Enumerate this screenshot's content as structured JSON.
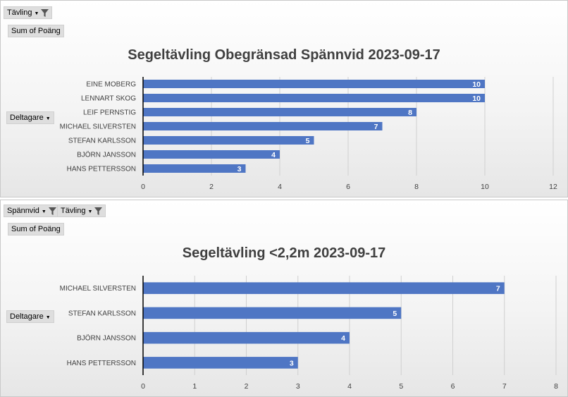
{
  "panel1": {
    "filters": [
      {
        "label": "Tävling"
      }
    ],
    "value_field": "Sum of Poäng",
    "row_field": "Deltagare"
  },
  "panel2": {
    "filters": [
      {
        "label": "Spännvid"
      },
      {
        "label": "Tävling"
      }
    ],
    "value_field": "Sum of Poäng",
    "row_field": "Deltagare"
  },
  "colors": {
    "bar": "#4f76c4",
    "grid": "#d0d0d0",
    "axis": "#000000"
  },
  "chart_data": [
    {
      "type": "bar",
      "orientation": "horizontal",
      "title": "Segeltävling Obegränsad Spännvid 2023-09-17",
      "categories": [
        "EINE MOBERG",
        "LENNART SKOG",
        "LEIF PERNSTIG",
        "MICHAEL SILVERSTEN",
        "STEFAN KARLSSON",
        "BJÖRN JANSSON",
        "HANS PETTERSSON"
      ],
      "values": [
        10,
        10,
        8,
        7,
        5,
        4,
        3
      ],
      "xlim": [
        0,
        12
      ],
      "ticks": [
        "0",
        "2",
        "4",
        "6",
        "8",
        "10",
        "12"
      ],
      "grid": true,
      "data_labels": true
    },
    {
      "type": "bar",
      "orientation": "horizontal",
      "title": "Segeltävling <2,2m 2023-09-17",
      "categories": [
        "MICHAEL SILVERSTEN",
        "STEFAN KARLSSON",
        "BJÖRN JANSSON",
        "HANS PETTERSSON"
      ],
      "values": [
        7,
        5,
        4,
        3
      ],
      "xlim": [
        0,
        8
      ],
      "ticks": [
        "0",
        "1",
        "2",
        "3",
        "4",
        "5",
        "6",
        "7",
        "8"
      ],
      "grid": true,
      "data_labels": true
    }
  ]
}
